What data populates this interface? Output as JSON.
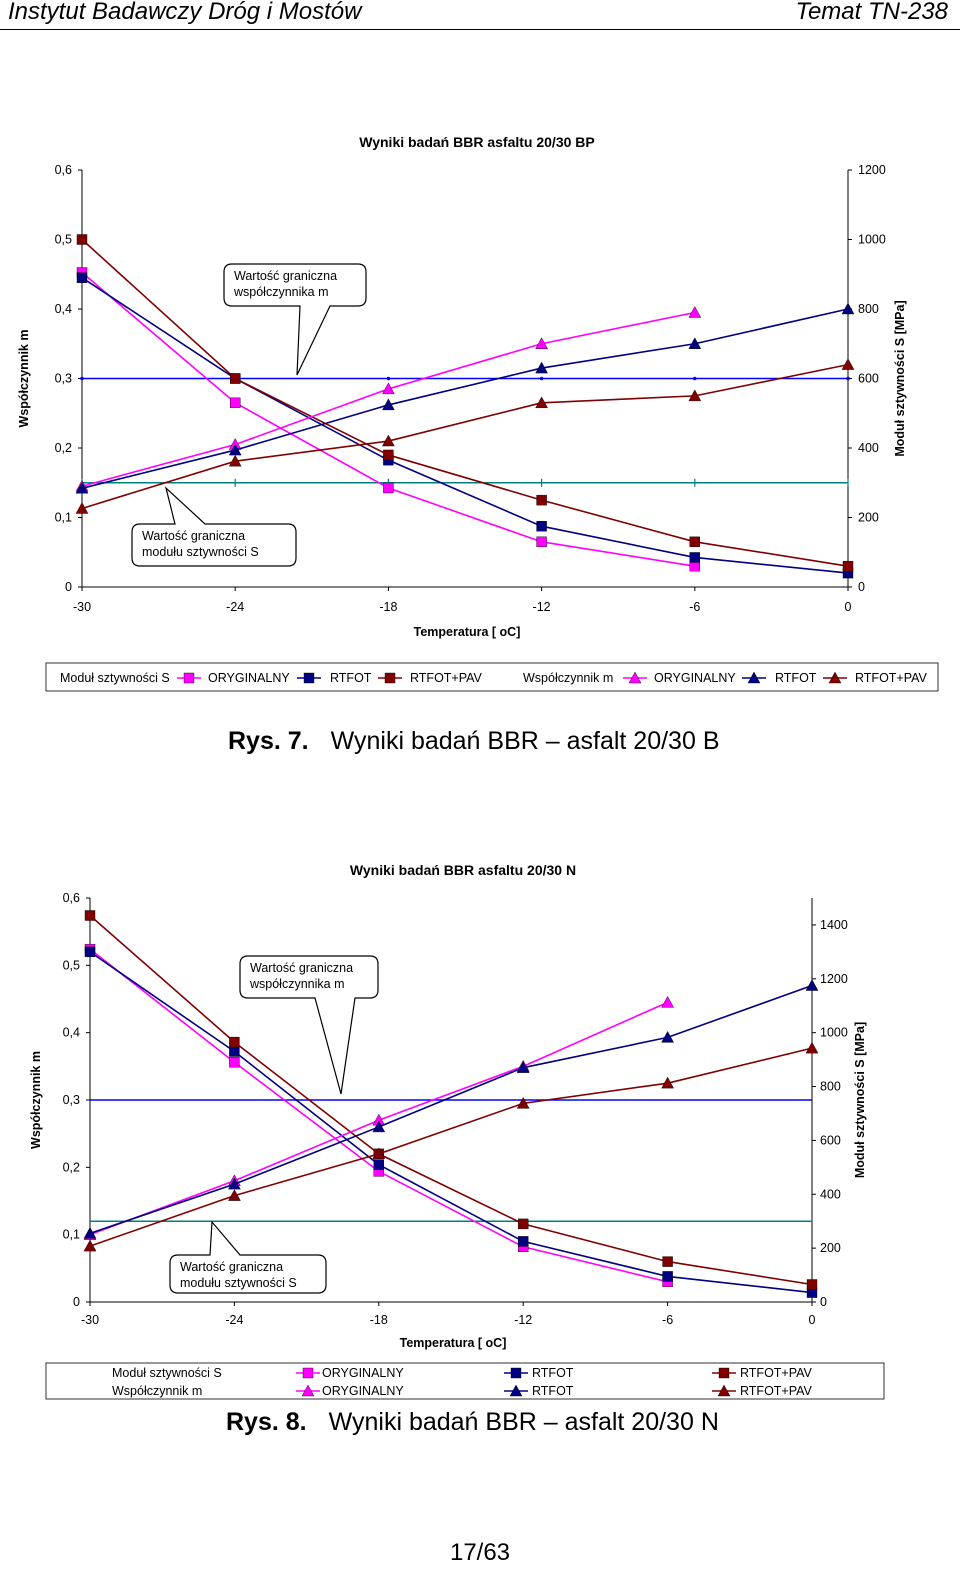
{
  "header": {
    "left": "Instytut Badawczy Dróg i Mostów",
    "right": "Temat TN-238"
  },
  "colors": {
    "original": "#ff00ff",
    "rtfot": "#000080",
    "rtfot_pav": "#800000",
    "m_limit": "#0000ff",
    "s_limit": "#008080"
  },
  "legend": {
    "s_group": "Moduł sztywności S",
    "m_group": "Współczynnik m",
    "original": "ORYGINALNY",
    "rtfot": "RTFOT",
    "rtfot_pav": "RTFOT+PAV"
  },
  "callouts": {
    "m_limit": [
      "Wartość graniczna",
      "współczynnika m"
    ],
    "s_limit": [
      "Wartość graniczna",
      "modułu sztywności S"
    ]
  },
  "chart_data": [
    {
      "type": "line",
      "title": "Wyniki badań BBR asfaltu 20/30 BP",
      "xlabel": "Temperatura [ oC]",
      "ylabel_left": "Współczynnik m",
      "ylabel_right": "Moduł sztywności S [MPa]",
      "x": [
        -30,
        -24,
        -18,
        -12,
        -6,
        0
      ],
      "x_ticks": [
        "-30",
        "-24",
        "-18",
        "-12",
        "-6",
        "0"
      ],
      "ylim_left": [
        0,
        0.6
      ],
      "yticks_left": [
        "0",
        "0,1",
        "0,2",
        "0,3",
        "0,4",
        "0,5",
        "0,6"
      ],
      "ylim_right": [
        0,
        1200
      ],
      "yticks_right": [
        "0",
        "200",
        "400",
        "600",
        "800",
        "1000",
        "1200"
      ],
      "m_limit": 0.3,
      "s_limit": 300,
      "series": [
        {
          "name": "ORYGINALNY",
          "group": "S",
          "axis": "right",
          "marker": "square",
          "color": "original",
          "values": [
            905,
            530,
            285,
            130,
            60,
            null
          ]
        },
        {
          "name": "RTFOT",
          "group": "S",
          "axis": "right",
          "marker": "square",
          "color": "rtfot",
          "values": [
            890,
            600,
            365,
            175,
            85,
            40
          ]
        },
        {
          "name": "RTFOT+PAV",
          "group": "S",
          "axis": "right",
          "marker": "square",
          "color": "rtfot_pav",
          "values": [
            1000,
            600,
            380,
            250,
            130,
            60
          ]
        },
        {
          "name": "ORYGINALNY",
          "group": "m",
          "axis": "left",
          "marker": "triangle",
          "color": "original",
          "values": [
            0.145,
            0.205,
            0.285,
            0.35,
            0.395,
            null
          ]
        },
        {
          "name": "RTFOT",
          "group": "m",
          "axis": "left",
          "marker": "triangle",
          "color": "rtfot",
          "values": [
            0.142,
            0.197,
            0.262,
            0.315,
            0.35,
            0.4
          ]
        },
        {
          "name": "RTFOT+PAV",
          "group": "m",
          "axis": "left",
          "marker": "triangle",
          "color": "rtfot_pav",
          "values": [
            0.113,
            0.181,
            0.21,
            0.265,
            0.275,
            0.32
          ]
        }
      ]
    },
    {
      "type": "line",
      "title": "Wyniki badań BBR asfaltu 20/30 N",
      "xlabel": "Temperatura [ oC]",
      "ylabel_left": "Współczynnik m",
      "ylabel_right": "Moduł sztywności S [MPa]",
      "x": [
        -30,
        -24,
        -18,
        -12,
        -6,
        0
      ],
      "x_ticks": [
        "-30",
        "-24",
        "-18",
        "-12",
        "-6",
        "0"
      ],
      "ylim_left": [
        0,
        0.6
      ],
      "yticks_left": [
        "0",
        "0,1",
        "0,2",
        "0,3",
        "0,4",
        "0,5",
        "0,6"
      ],
      "ylim_right": [
        0,
        1500
      ],
      "yticks_right": [
        "0",
        "200",
        "400",
        "600",
        "800",
        "1000",
        "1200",
        "1400"
      ],
      "m_limit": 0.3,
      "s_limit": 300,
      "series": [
        {
          "name": "ORYGINALNY",
          "group": "S",
          "axis": "right",
          "marker": "square",
          "color": "original",
          "values": [
            1310,
            890,
            485,
            205,
            75,
            null
          ]
        },
        {
          "name": "RTFOT",
          "group": "S",
          "axis": "right",
          "marker": "square",
          "color": "rtfot",
          "values": [
            1300,
            930,
            510,
            225,
            95,
            35
          ]
        },
        {
          "name": "RTFOT+PAV",
          "group": "S",
          "axis": "right",
          "marker": "square",
          "color": "rtfot_pav",
          "values": [
            1435,
            965,
            550,
            290,
            150,
            65
          ]
        },
        {
          "name": "ORYGINALNY",
          "group": "m",
          "axis": "left",
          "marker": "triangle",
          "color": "original",
          "values": [
            0.1,
            0.18,
            0.27,
            0.35,
            0.445,
            null
          ]
        },
        {
          "name": "RTFOT",
          "group": "m",
          "axis": "left",
          "marker": "triangle",
          "color": "rtfot",
          "values": [
            0.102,
            0.175,
            0.26,
            0.348,
            0.393,
            0.47
          ]
        },
        {
          "name": "RTFOT+PAV",
          "group": "m",
          "axis": "left",
          "marker": "triangle",
          "color": "rtfot_pav",
          "values": [
            0.083,
            0.158,
            0.22,
            0.295,
            0.325,
            0.377
          ]
        }
      ]
    }
  ],
  "captions": [
    {
      "label": "Rys. 7.",
      "text": "Wyniki badań BBR – asfalt 20/30 B"
    },
    {
      "label": "Rys. 8.",
      "text": "Wyniki badań BBR – asfalt 20/30 N"
    }
  ],
  "footer": "17/63"
}
